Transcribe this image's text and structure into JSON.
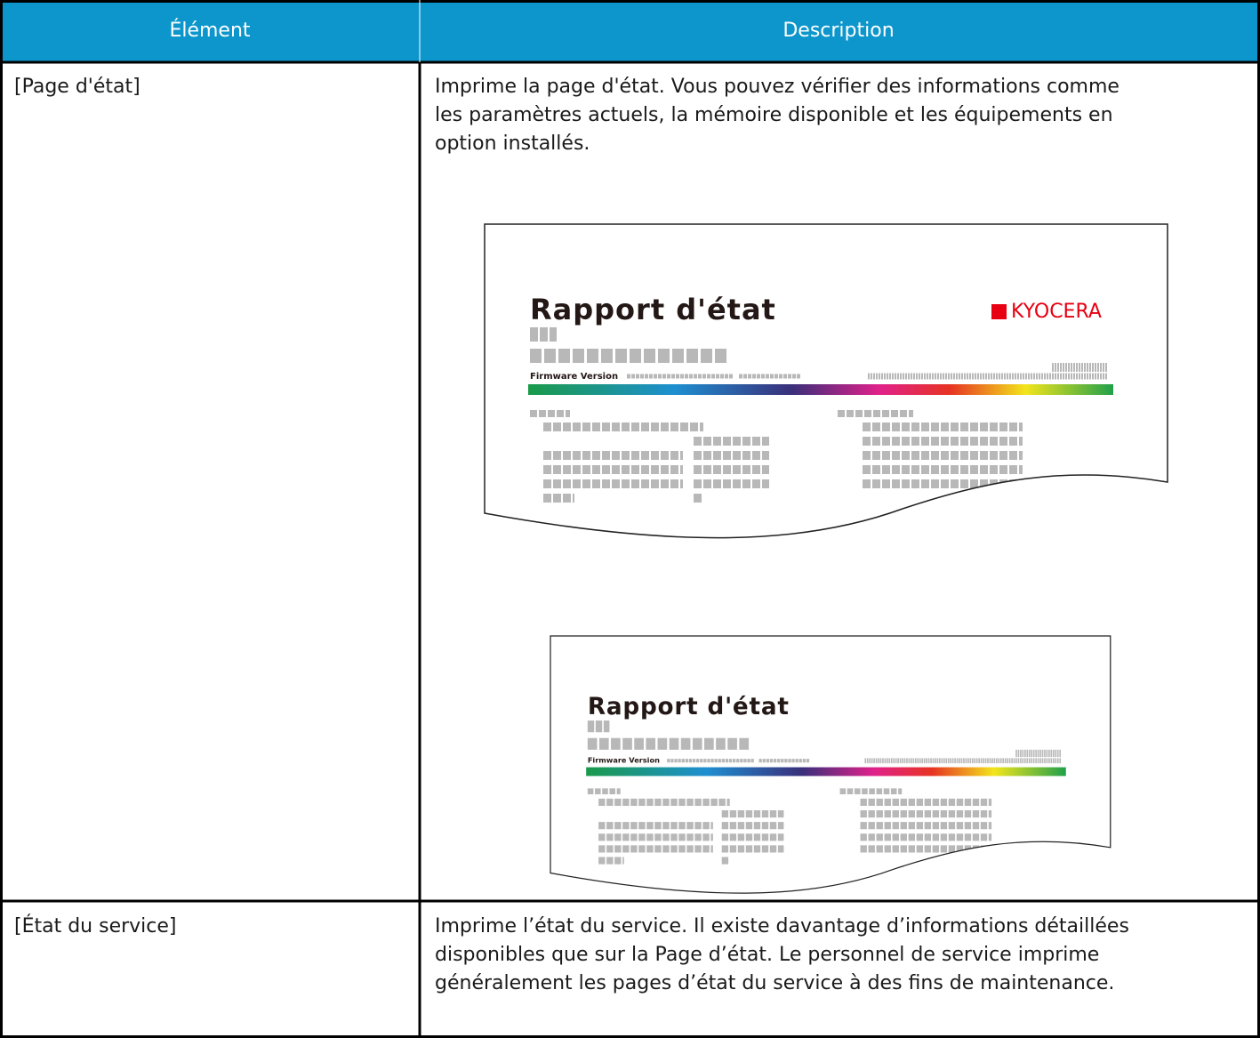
{
  "table": {
    "header": [
      "Élément",
      "Description"
    ],
    "rows": [
      {
        "item": "[Page d'état]",
        "description": [
          "Imprime la page d'état. Vous pouvez vérifier des informations comme",
          "les paramètres actuels, la mémoire disponible et les équipements en",
          "option installés."
        ],
        "illustrations": [
          {
            "title": "Rapport d'état",
            "logo": "KYOCERA",
            "firmware": "Firmware Version"
          },
          {
            "title": "Rapport d'état",
            "firmware": "Firmware Version"
          }
        ]
      },
      {
        "item": "[État du service]",
        "description": [
          "Imprime l’état du service. Il existe davantage d’informations détaillées",
          "disponibles que sur la Page d’état. Le personnel de service imprime",
          "généralement les pages d’état du service à des fins de maintenance."
        ]
      }
    ]
  }
}
